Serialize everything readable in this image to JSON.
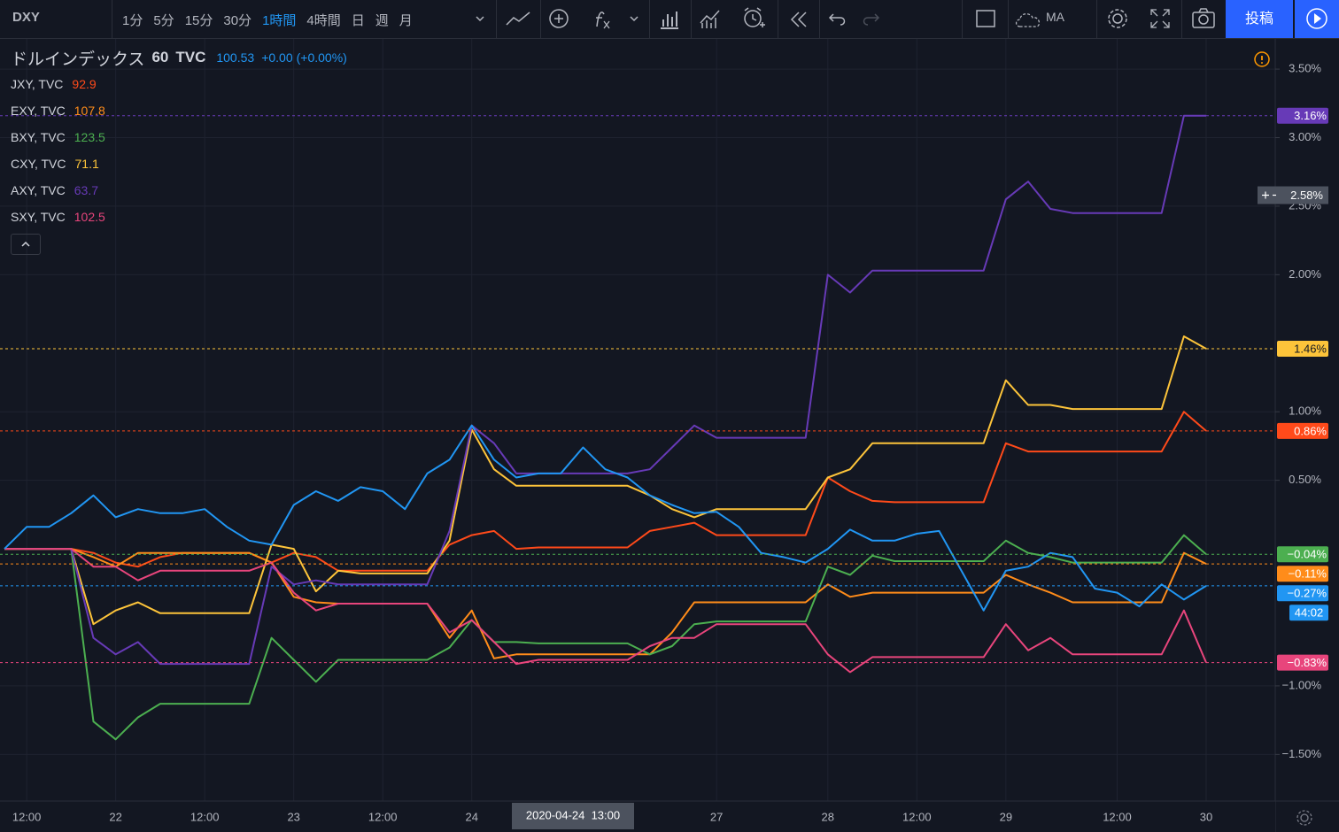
{
  "toolbar": {
    "symbol": "DXY",
    "intervals": [
      {
        "label": "1分"
      },
      {
        "label": "5分"
      },
      {
        "label": "15分"
      },
      {
        "label": "30分"
      },
      {
        "label": "1時間",
        "selected": true
      },
      {
        "label": "4時間"
      },
      {
        "label": "日"
      },
      {
        "label": "週"
      },
      {
        "label": "月"
      }
    ],
    "indicator": "MA",
    "publish": "投稿"
  },
  "legend": {
    "interval": "60",
    "exchange": "TVC",
    "change": "+0.00",
    "change_pct": "(+0.00%)"
  },
  "chart_data": {
    "type": "line",
    "categories": [
      null,
      "12:00",
      null,
      null,
      null,
      "22",
      null,
      null,
      null,
      "12:00",
      null,
      null,
      null,
      "23",
      null,
      null,
      null,
      "12:00",
      null,
      null,
      null,
      "24",
      null,
      null,
      null,
      null,
      null,
      null,
      null,
      null,
      null,
      null,
      "27",
      null,
      null,
      null,
      null,
      "28",
      null,
      null,
      null,
      "12:00",
      null,
      null,
      null,
      "29",
      null,
      null,
      null,
      null,
      "12:00",
      null,
      null,
      null,
      "30"
    ],
    "ylim": [
      -1.84,
      3.72
    ],
    "yticks": [
      {
        "value": 3.5,
        "label": "3.50%"
      },
      {
        "value": 3,
        "label": "3.00%"
      },
      {
        "value": 2.5,
        "label": "2.50%"
      },
      {
        "value": 2,
        "label": "2.00%"
      },
      {
        "value": 1,
        "label": "1.00%"
      },
      {
        "value": 0.5,
        "label": "0.50%"
      },
      {
        "value": -1,
        "label": "−1.00%"
      },
      {
        "value": -1.5,
        "label": "−1.50%"
      }
    ],
    "grid": true,
    "crosshair": {
      "x_label": "2020-04-24  13:00",
      "y": 2.58,
      "y_label": "2.58%"
    },
    "countdown": "44:02",
    "series": [
      {
        "name": "ドルインデックス",
        "legend_value": "100.53",
        "color": "#2196f3",
        "price_label": "−0.27%",
        "values": [
          0,
          0.16,
          0.16,
          0.26,
          0.39,
          0.23,
          0.29,
          0.26,
          0.26,
          0.29,
          0.16,
          0.06,
          0.03,
          0.32,
          0.42,
          0.35,
          0.45,
          0.42,
          0.29,
          0.55,
          0.65,
          0.9,
          0.65,
          0.52,
          0.55,
          0.55,
          0.74,
          0.58,
          0.52,
          0.39,
          0.32,
          0.26,
          0.27,
          0.16,
          -0.03,
          -0.06,
          -0.1,
          0,
          0.14,
          0.06,
          0.06,
          0.11,
          0.13,
          -0.16,
          -0.45,
          -0.16,
          -0.13,
          -0.03,
          -0.06,
          -0.29,
          -0.32,
          -0.42,
          -0.26,
          -0.37,
          -0.27
        ]
      },
      {
        "name": "JXY, TVC",
        "legend_value": "92.9",
        "color": "#ff4a1a",
        "price_label": "0.86%",
        "values": [
          0,
          0,
          0,
          0,
          -0.03,
          -0.1,
          -0.13,
          -0.06,
          -0.03,
          -0.03,
          -0.03,
          -0.03,
          -0.1,
          -0.03,
          -0.06,
          -0.16,
          -0.16,
          -0.16,
          -0.16,
          -0.16,
          0.03,
          0.1,
          0.13,
          0,
          0.01,
          0.01,
          0.01,
          0.01,
          0.01,
          0.13,
          0.16,
          0.19,
          0.1,
          0.1,
          0.1,
          0.1,
          0.1,
          0.52,
          0.42,
          0.35,
          0.34,
          0.34,
          0.34,
          0.34,
          0.34,
          0.77,
          0.71,
          0.71,
          0.71,
          0.71,
          0.71,
          0.71,
          0.71,
          1.0,
          0.86
        ]
      },
      {
        "name": "EXY, TVC",
        "legend_value": "107.8",
        "color": "#ff8c1a",
        "price_label": "−0.11%",
        "values": [
          0,
          0,
          0,
          0,
          -0.06,
          -0.13,
          -0.03,
          -0.03,
          -0.03,
          -0.03,
          -0.03,
          -0.03,
          -0.1,
          -0.35,
          -0.39,
          -0.4,
          -0.4,
          -0.4,
          -0.4,
          -0.4,
          -0.65,
          -0.45,
          -0.8,
          -0.77,
          -0.77,
          -0.77,
          -0.77,
          -0.77,
          -0.77,
          -0.77,
          -0.61,
          -0.39,
          -0.39,
          -0.39,
          -0.39,
          -0.39,
          -0.39,
          -0.26,
          -0.35,
          -0.32,
          -0.32,
          -0.32,
          -0.32,
          -0.32,
          -0.32,
          -0.19,
          -0.26,
          -0.32,
          -0.39,
          -0.39,
          -0.39,
          -0.39,
          -0.39,
          -0.03,
          -0.11
        ]
      },
      {
        "name": "BXY, TVC",
        "legend_value": "123.5",
        "color": "#4caf50",
        "price_label": "−0.04%",
        "values": [
          0,
          0,
          0,
          0,
          -1.26,
          -1.39,
          -1.23,
          -1.13,
          -1.13,
          -1.13,
          -1.13,
          -1.13,
          -0.65,
          -0.81,
          -0.97,
          -0.81,
          -0.81,
          -0.81,
          -0.81,
          -0.81,
          -0.72,
          -0.52,
          -0.68,
          -0.68,
          -0.69,
          -0.69,
          -0.69,
          -0.69,
          -0.69,
          -0.77,
          -0.71,
          -0.55,
          -0.53,
          -0.53,
          -0.53,
          -0.53,
          -0.53,
          -0.13,
          -0.19,
          -0.05,
          -0.09,
          -0.09,
          -0.09,
          -0.09,
          -0.09,
          0.06,
          -0.03,
          -0.06,
          -0.1,
          -0.1,
          -0.1,
          -0.1,
          -0.1,
          0.1,
          -0.04
        ]
      },
      {
        "name": "CXY, TVC",
        "legend_value": "71.1",
        "color": "#fdc43a",
        "price_label": "1.46%",
        "values": [
          0,
          0,
          0,
          0,
          -0.55,
          -0.45,
          -0.39,
          -0.47,
          -0.47,
          -0.47,
          -0.47,
          -0.47,
          0.03,
          0,
          -0.31,
          -0.16,
          -0.18,
          -0.18,
          -0.18,
          -0.18,
          0.06,
          0.87,
          0.58,
          0.46,
          0.46,
          0.46,
          0.46,
          0.46,
          0.46,
          0.39,
          0.29,
          0.23,
          0.29,
          0.29,
          0.29,
          0.29,
          0.29,
          0.52,
          0.58,
          0.77,
          0.77,
          0.77,
          0.77,
          0.77,
          0.77,
          1.23,
          1.05,
          1.05,
          1.02,
          1.02,
          1.02,
          1.02,
          1.02,
          1.55,
          1.46
        ]
      },
      {
        "name": "AXY, TVC",
        "legend_value": "63.7",
        "color": "#673ab7",
        "price_label": "3.16%",
        "values": [
          0,
          0,
          0,
          0,
          -0.65,
          -0.77,
          -0.68,
          -0.84,
          -0.84,
          -0.84,
          -0.84,
          -0.84,
          -0.13,
          -0.26,
          -0.23,
          -0.26,
          -0.26,
          -0.26,
          -0.26,
          -0.26,
          0.13,
          0.9,
          0.77,
          0.55,
          0.55,
          0.55,
          0.55,
          0.55,
          0.55,
          0.58,
          0.74,
          0.9,
          0.81,
          0.81,
          0.81,
          0.81,
          0.81,
          2.0,
          1.87,
          2.03,
          2.03,
          2.03,
          2.03,
          2.03,
          2.03,
          2.55,
          2.68,
          2.48,
          2.45,
          2.45,
          2.45,
          2.45,
          2.45,
          3.16,
          3.16
        ]
      },
      {
        "name": "SXY, TVC",
        "legend_value": "102.5",
        "color": "#e8457c",
        "price_label": "−0.83%",
        "values": [
          0,
          0,
          0,
          0,
          -0.13,
          -0.13,
          -0.23,
          -0.16,
          -0.16,
          -0.16,
          -0.16,
          -0.16,
          -0.1,
          -0.32,
          -0.45,
          -0.4,
          -0.4,
          -0.4,
          -0.4,
          -0.4,
          -0.61,
          -0.52,
          -0.68,
          -0.84,
          -0.81,
          -0.81,
          -0.81,
          -0.81,
          -0.81,
          -0.71,
          -0.65,
          -0.65,
          -0.55,
          -0.55,
          -0.55,
          -0.55,
          -0.55,
          -0.77,
          -0.9,
          -0.79,
          -0.79,
          -0.79,
          -0.79,
          -0.79,
          -0.79,
          -0.55,
          -0.74,
          -0.65,
          -0.77,
          -0.77,
          -0.77,
          -0.77,
          -0.77,
          -0.45,
          -0.83
        ]
      }
    ]
  }
}
